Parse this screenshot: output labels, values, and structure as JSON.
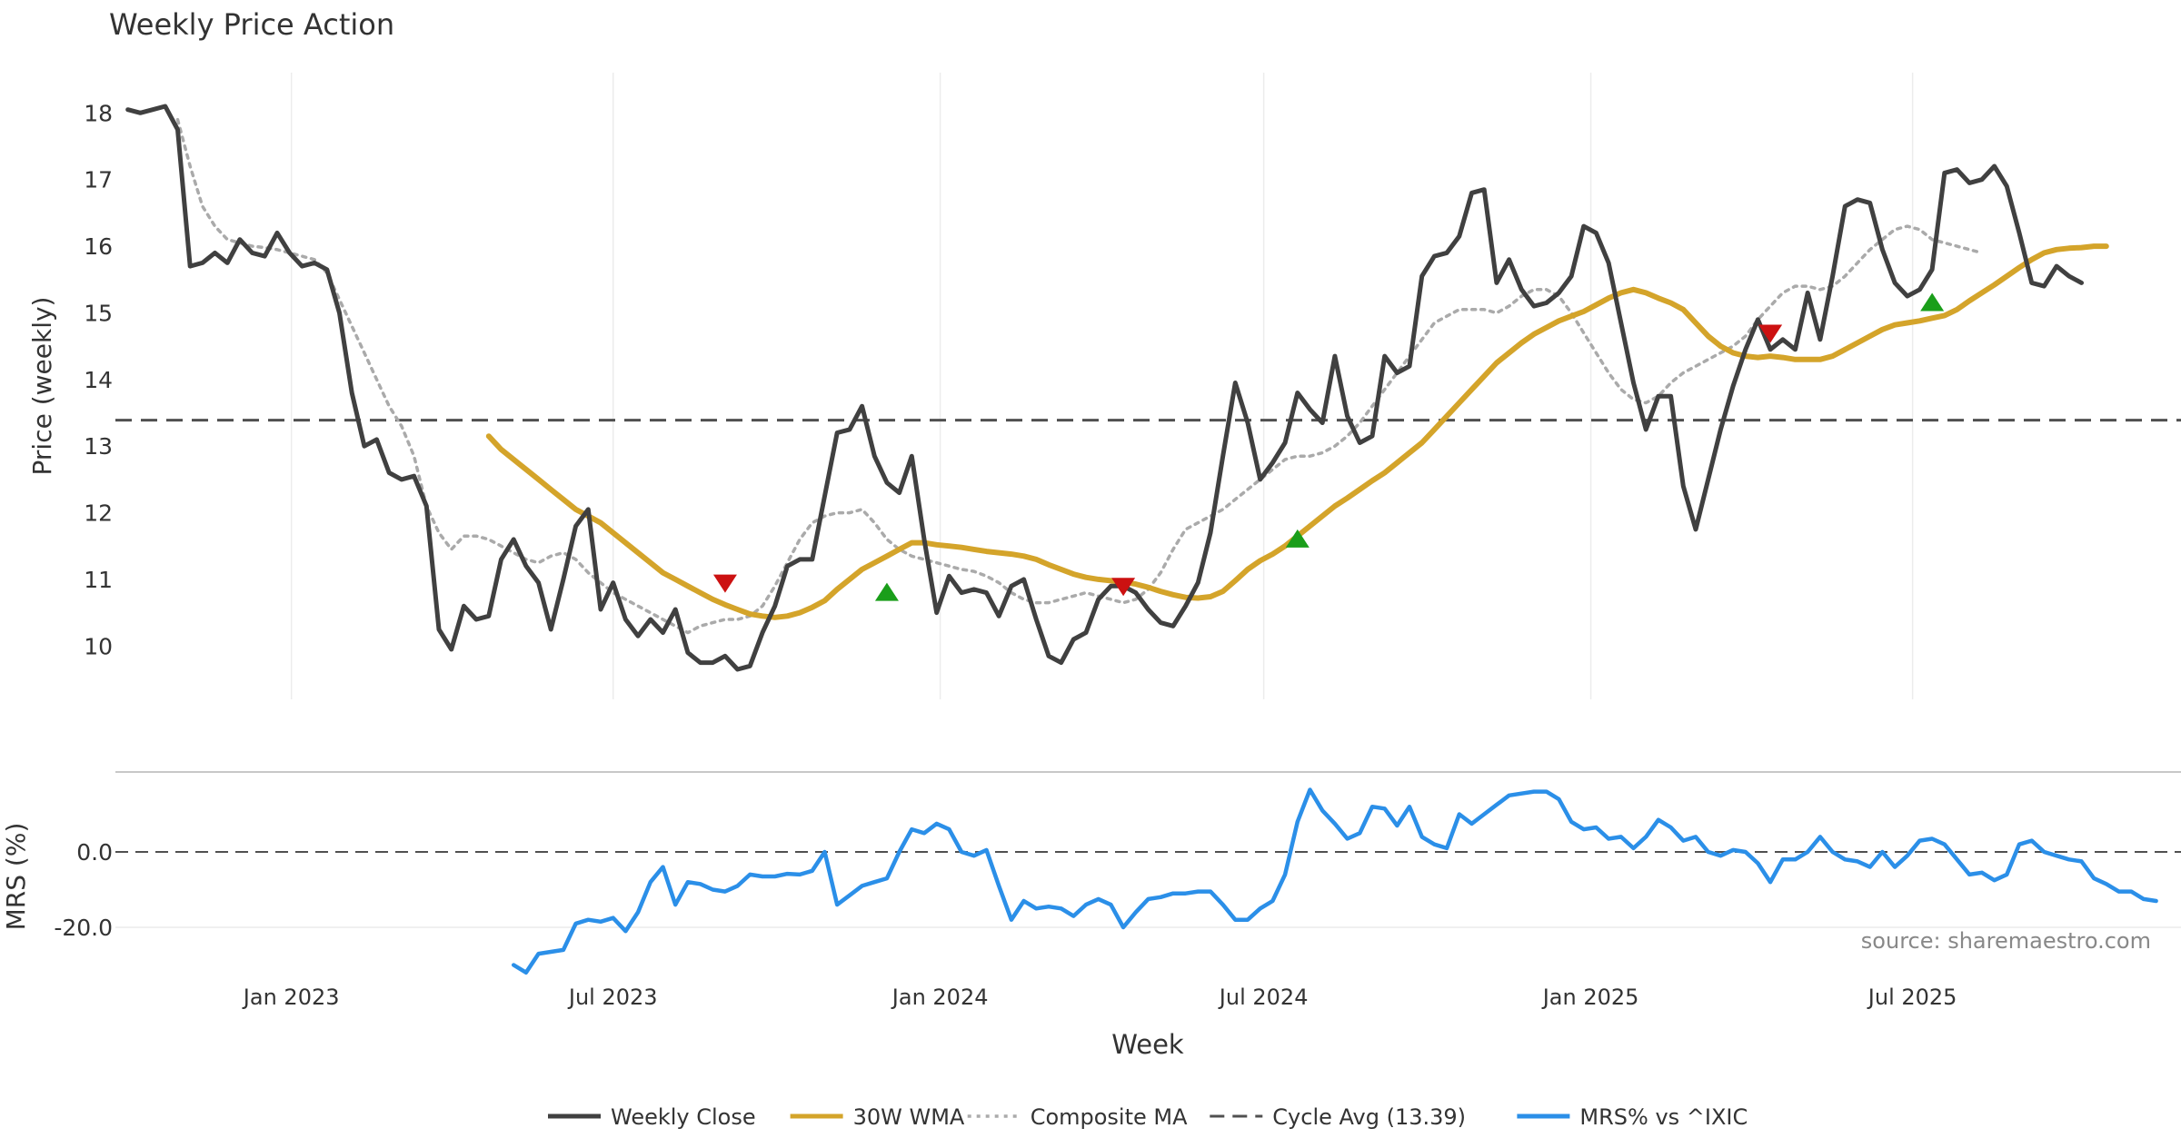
{
  "chart_data": {
    "type": "line",
    "title": "Weekly Price Action",
    "xlabel": "Week",
    "source": "source: sharemaestro.com",
    "x_tick_labels": [
      "Jan 2023",
      "Jul 2023",
      "Jan 2024",
      "Jul 2024",
      "Jan 2025",
      "Jul 2025"
    ],
    "x_tick_dates": [
      "2023-01-01",
      "2023-07-01",
      "2024-01-01",
      "2024-07-01",
      "2025-01-01",
      "2025-07-01"
    ],
    "x_range": [
      "2022-09-24",
      "2025-11-29"
    ],
    "price_panel": {
      "ylabel": "Price (weekly)",
      "ylim": [
        9.2,
        18.4
      ],
      "yticks": [
        "10",
        "11",
        "12",
        "13",
        "14",
        "15",
        "16",
        "17",
        "18"
      ],
      "grid": "vertical-only"
    },
    "mrs_panel": {
      "ylabel": "MRS (%)",
      "ylim": [
        -33,
        20
      ],
      "yticks": [
        "0.0",
        "-20.0"
      ],
      "reference_line": 0.0
    },
    "cycle_avg": 13.39,
    "legend": {
      "position": "bottom-center",
      "entries": [
        {
          "label": "Weekly Close",
          "color": "#404040",
          "style": "solid"
        },
        {
          "label": "30W WMA",
          "color": "#D4A42A",
          "style": "solid"
        },
        {
          "label": "Composite MA",
          "color": "#AAAAAA",
          "style": "dotted"
        },
        {
          "label": "Cycle Avg (13.39)",
          "color": "#505050",
          "style": "dashed"
        },
        {
          "label": "MRS% vs ^IXIC",
          "color": "#2B8FE8",
          "style": "solid"
        }
      ]
    },
    "series": [
      {
        "name": "Weekly Close",
        "color": "#404040",
        "x_start": "2022-10-01",
        "step_days": 7,
        "values": [
          18.05,
          18.0,
          18.05,
          18.1,
          17.75,
          15.7,
          15.75,
          15.9,
          15.75,
          16.1,
          15.9,
          15.85,
          16.2,
          15.9,
          15.7,
          15.75,
          15.65,
          15.0,
          13.8,
          13.0,
          13.1,
          12.6,
          12.5,
          12.55,
          12.1,
          10.25,
          9.95,
          10.6,
          10.4,
          10.45,
          11.3,
          11.6,
          11.2,
          10.95,
          10.25,
          11.0,
          11.8,
          12.05,
          10.55,
          10.95,
          10.4,
          10.15,
          10.4,
          10.2,
          10.55,
          9.9,
          9.75,
          9.75,
          9.85,
          9.65,
          9.7,
          10.2,
          10.6,
          11.2,
          11.3,
          11.3,
          12.25,
          13.2,
          13.25,
          13.6,
          12.85,
          12.45,
          12.3,
          12.85,
          11.6,
          10.5,
          11.05,
          10.8,
          10.85,
          10.8,
          10.45,
          10.9,
          11.0,
          10.4,
          9.85,
          9.75,
          10.1,
          10.2,
          10.7,
          10.9,
          10.9,
          10.8,
          10.55,
          10.35,
          10.3,
          10.6,
          10.95,
          11.7,
          12.85,
          13.95,
          13.35,
          12.5,
          12.75,
          13.05,
          13.8,
          13.55,
          13.35,
          14.35,
          13.45,
          13.05,
          13.15,
          14.35,
          14.1,
          14.2,
          15.55,
          15.85,
          15.9,
          16.15,
          16.8,
          16.85,
          15.45,
          15.8,
          15.35,
          15.1,
          15.15,
          15.3,
          15.55,
          16.3,
          16.2,
          15.75,
          14.85,
          13.95,
          13.25,
          13.75,
          13.75,
          12.4,
          11.75,
          12.5,
          13.25,
          13.9,
          14.45,
          14.9,
          14.45,
          14.6,
          14.45,
          15.3,
          14.6,
          15.55,
          16.6,
          16.7,
          16.65,
          15.95,
          15.45,
          15.25,
          15.35,
          15.65,
          17.1,
          17.15,
          16.95,
          17.0,
          17.2,
          16.9,
          16.2,
          15.45,
          15.4,
          15.7,
          15.55,
          15.45
        ]
      },
      {
        "name": "30W WMA",
        "color": "#D4A42A",
        "x_start": "2023-04-22",
        "step_days": 7,
        "values": [
          13.15,
          12.95,
          12.8,
          12.65,
          12.5,
          12.35,
          12.2,
          12.05,
          11.95,
          11.85,
          11.7,
          11.55,
          11.4,
          11.25,
          11.1,
          11.0,
          10.9,
          10.8,
          10.7,
          10.62,
          10.55,
          10.48,
          10.45,
          10.43,
          10.45,
          10.5,
          10.58,
          10.68,
          10.85,
          11.0,
          11.15,
          11.25,
          11.35,
          11.45,
          11.55,
          11.55,
          11.52,
          11.5,
          11.48,
          11.45,
          11.42,
          11.4,
          11.38,
          11.35,
          11.3,
          11.22,
          11.15,
          11.08,
          11.03,
          11.0,
          10.98,
          10.96,
          10.93,
          10.88,
          10.82,
          10.77,
          10.73,
          10.72,
          10.74,
          10.82,
          10.98,
          11.15,
          11.28,
          11.38,
          11.5,
          11.65,
          11.8,
          11.95,
          12.1,
          12.22,
          12.35,
          12.48,
          12.6,
          12.75,
          12.9,
          13.05,
          13.25,
          13.45,
          13.65,
          13.85,
          14.05,
          14.25,
          14.4,
          14.55,
          14.68,
          14.78,
          14.88,
          14.95,
          15.02,
          15.12,
          15.22,
          15.3,
          15.35,
          15.3,
          15.22,
          15.15,
          15.05,
          14.85,
          14.65,
          14.5,
          14.4,
          14.35,
          14.33,
          14.35,
          14.33,
          14.3,
          14.3,
          14.3,
          14.35,
          14.45,
          14.55,
          14.65,
          14.75,
          14.82,
          14.85,
          14.88,
          14.92,
          14.96,
          15.05,
          15.18,
          15.3,
          15.42,
          15.55,
          15.68,
          15.8,
          15.9,
          15.95,
          15.97,
          15.98,
          16.0,
          16.0
        ]
      },
      {
        "name": "Composite MA",
        "color": "#AAAAAA",
        "x_start": "2022-10-29",
        "step_days": 7,
        "values": [
          17.9,
          17.2,
          16.6,
          16.3,
          16.1,
          16.05,
          16.0,
          15.98,
          15.95,
          15.9,
          15.85,
          15.8,
          15.6,
          15.2,
          14.8,
          14.4,
          14.0,
          13.6,
          13.3,
          12.85,
          12.1,
          11.7,
          11.45,
          11.65,
          11.65,
          11.6,
          11.5,
          11.4,
          11.3,
          11.25,
          11.35,
          11.4,
          11.3,
          11.1,
          10.95,
          10.8,
          10.7,
          10.6,
          10.5,
          10.4,
          10.3,
          10.2,
          10.3,
          10.35,
          10.4,
          10.4,
          10.45,
          10.6,
          10.9,
          11.25,
          11.6,
          11.85,
          11.95,
          12.0,
          12.0,
          12.05,
          11.85,
          11.6,
          11.45,
          11.35,
          11.3,
          11.25,
          11.2,
          11.15,
          11.12,
          11.05,
          10.95,
          10.8,
          10.7,
          10.65,
          10.65,
          10.7,
          10.75,
          10.8,
          10.75,
          10.7,
          10.65,
          10.7,
          10.85,
          11.1,
          11.45,
          11.75,
          11.85,
          11.95,
          12.05,
          12.2,
          12.35,
          12.5,
          12.65,
          12.8,
          12.85,
          12.85,
          12.9,
          13.0,
          13.15,
          13.35,
          13.6,
          13.85,
          14.1,
          14.35,
          14.6,
          14.85,
          14.95,
          15.05,
          15.05,
          15.05,
          15.0,
          15.1,
          15.25,
          15.35,
          15.35,
          15.25,
          15.0,
          14.7,
          14.4,
          14.1,
          13.85,
          13.7,
          13.65,
          13.75,
          13.95,
          14.1,
          14.2,
          14.3,
          14.4,
          14.5,
          14.65,
          14.9,
          15.1,
          15.3,
          15.4,
          15.4,
          15.35,
          15.4,
          15.55,
          15.75,
          15.95,
          16.1,
          16.25,
          16.3,
          16.25,
          16.1,
          16.05,
          16.0,
          15.95,
          15.9
        ]
      },
      {
        "name": "MRS% vs ^IXIC",
        "color": "#2B8FE8",
        "panel": "mrs",
        "x_start": "2023-05-06",
        "step_days": 7,
        "values": [
          -30,
          -32,
          -27,
          -26.5,
          -26,
          -19,
          -18,
          -18.5,
          -17.5,
          -21,
          -16,
          -8,
          -4,
          -14,
          -8,
          -8.5,
          -10,
          -10.5,
          -9,
          -6,
          -6.5,
          -6.5,
          -5.8,
          -6,
          -5,
          0,
          -14,
          -11.5,
          -9,
          -8,
          -7,
          0,
          6,
          5,
          7.5,
          6,
          0,
          -1,
          0.5,
          -9,
          -18,
          -13,
          -15,
          -14.5,
          -15,
          -17,
          -14,
          -12.5,
          -14,
          -20,
          -16,
          -12.5,
          -12,
          -11,
          -11,
          -10.5,
          -10.5,
          -14,
          -18,
          -18,
          -15,
          -13,
          -6,
          8,
          16.5,
          11,
          7.5,
          3.5,
          5,
          12,
          11.5,
          7,
          12,
          4,
          2,
          1,
          10,
          7.5,
          10,
          12.5,
          15,
          15.5,
          16,
          16,
          14,
          8,
          6,
          6.5,
          3.5,
          4,
          1,
          4,
          8.5,
          6.5,
          3,
          4,
          0,
          -1,
          0.5,
          0,
          -3,
          -8,
          -2,
          -2,
          0,
          4,
          0,
          -2,
          -2.5,
          -4,
          0,
          -4,
          -1,
          3,
          3.5,
          2,
          -2,
          -6,
          -5.5,
          -7.5,
          -6,
          2,
          3,
          0,
          -1,
          -2,
          -2.5,
          -7,
          -8.5,
          -10.5,
          -10.5,
          -12.5,
          -13
        ]
      }
    ],
    "signals": [
      {
        "type": "sell",
        "date": "2023-09-02",
        "value": 10.95
      },
      {
        "type": "buy",
        "date": "2023-12-02",
        "value": 10.8
      },
      {
        "type": "sell",
        "date": "2024-04-13",
        "value": 10.9
      },
      {
        "type": "buy",
        "date": "2024-07-20",
        "value": 11.6
      },
      {
        "type": "sell",
        "date": "2025-04-12",
        "value": 14.7
      },
      {
        "type": "buy",
        "date": "2025-07-12",
        "value": 15.15
      }
    ]
  }
}
